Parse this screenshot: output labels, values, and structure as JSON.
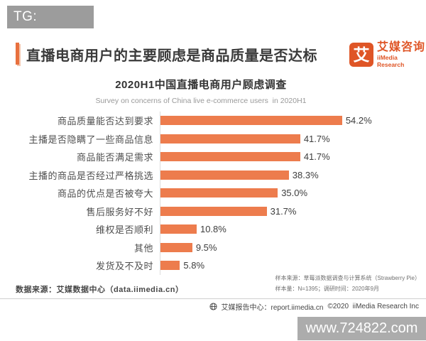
{
  "tg_badge": {
    "text": "TG: MYYJJPP"
  },
  "header": {
    "title": "直播电商用户的主要顾虑是商品质量是否达标",
    "logo": {
      "glyph": "艾",
      "brand_cn": "艾媒咨询",
      "brand_en": "iiMedia Research",
      "brand_color": "#DF5526"
    }
  },
  "chart_data": {
    "type": "bar",
    "orientation": "horizontal",
    "title": "2020H1中国直播电商用户顾虑调查",
    "subtitle": "Survey on concerns of China live e-commerce users  in 2020H1",
    "categories": [
      "商品质量能否达到要求",
      "主播是否隐瞒了一些商品信息",
      "商品能否满足需求",
      "主播的商品是否经过严格挑选",
      "商品的优点是否被夸大",
      "售后服务好不好",
      "维权是否顺利",
      "其他",
      "发货及不及时"
    ],
    "values": [
      54.2,
      41.7,
      41.7,
      38.3,
      35.0,
      31.7,
      10.8,
      9.5,
      5.8
    ],
    "value_labels": [
      "54.2%",
      "41.7%",
      "41.7%",
      "38.3%",
      "35.0%",
      "31.7%",
      "10.8%",
      "9.5%",
      "5.8%"
    ],
    "bar_color": "#ED7C4D",
    "xlim": [
      0,
      60
    ],
    "grid": false,
    "legend": false,
    "value_label_position": "end-of-bar"
  },
  "footnotes": {
    "data_source": "数据来源：艾媒数据中心（data.iimedia.cn）",
    "sample_source": "样本来源：草莓派数据调查与计算系统（Strawberry Pie）",
    "sample_info": "样本量：N=1395；调研时间：2020年9月"
  },
  "footer": {
    "report_center": "艾媒报告中心：report.iimedia.cn",
    "copyright": "©2020  iiMedia Research Inc"
  },
  "site_watermark": {
    "text": "www.724822.com"
  }
}
